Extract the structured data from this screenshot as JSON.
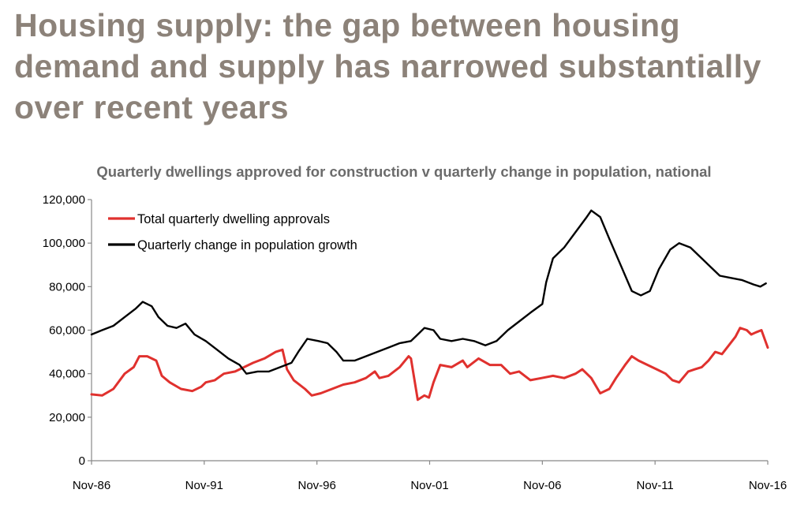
{
  "headline": "Housing supply: the gap between housing demand and supply has narrowed substantially over recent years",
  "chart_data": {
    "type": "line",
    "title": "Quarterly dwellings approved for construction v quarterly change in population, national",
    "xlabel": "",
    "ylabel": "",
    "x_ticks": [
      "Nov-86",
      "Nov-91",
      "Nov-96",
      "Nov-01",
      "Nov-06",
      "Nov-11",
      "Nov-16"
    ],
    "y_ticks": [
      "0",
      "20,000",
      "40,000",
      "60,000",
      "80,000",
      "100,000",
      "120,000"
    ],
    "ylim": [
      0,
      120000
    ],
    "xlim": [
      1986.83,
      2016.83
    ],
    "grid": false,
    "legend_position": "top-left",
    "series": [
      {
        "name": "Total quarterly dwelling approvals",
        "color": "#e0312e",
        "points": [
          [
            1986.83,
            30500
          ],
          [
            1987.3,
            30000
          ],
          [
            1987.8,
            33000
          ],
          [
            1988.3,
            40000
          ],
          [
            1988.7,
            43000
          ],
          [
            1988.95,
            48000
          ],
          [
            1989.3,
            48000
          ],
          [
            1989.7,
            46000
          ],
          [
            1989.95,
            39000
          ],
          [
            1990.3,
            36000
          ],
          [
            1990.8,
            33000
          ],
          [
            1991.3,
            32000
          ],
          [
            1991.7,
            34000
          ],
          [
            1991.9,
            36000
          ],
          [
            1992.3,
            37000
          ],
          [
            1992.7,
            40000
          ],
          [
            1993.2,
            41000
          ],
          [
            1993.6,
            43000
          ],
          [
            1994.0,
            45000
          ],
          [
            1994.5,
            47000
          ],
          [
            1995.0,
            50000
          ],
          [
            1995.3,
            51000
          ],
          [
            1995.5,
            42000
          ],
          [
            1995.8,
            37000
          ],
          [
            1996.3,
            33000
          ],
          [
            1996.6,
            30000
          ],
          [
            1997.0,
            31000
          ],
          [
            1997.5,
            33000
          ],
          [
            1998.0,
            35000
          ],
          [
            1998.5,
            36000
          ],
          [
            1999.0,
            38000
          ],
          [
            1999.4,
            41000
          ],
          [
            1999.6,
            38000
          ],
          [
            2000.0,
            39000
          ],
          [
            2000.5,
            43000
          ],
          [
            2000.9,
            48000
          ],
          [
            2001.0,
            47000
          ],
          [
            2001.3,
            28000
          ],
          [
            2001.6,
            30000
          ],
          [
            2001.8,
            29000
          ],
          [
            2002.0,
            36000
          ],
          [
            2002.3,
            44000
          ],
          [
            2002.8,
            43000
          ],
          [
            2003.3,
            46000
          ],
          [
            2003.5,
            43000
          ],
          [
            2004.0,
            47000
          ],
          [
            2004.5,
            44000
          ],
          [
            2005.0,
            44000
          ],
          [
            2005.4,
            40000
          ],
          [
            2005.8,
            41000
          ],
          [
            2006.3,
            37000
          ],
          [
            2006.8,
            38000
          ],
          [
            2007.3,
            39000
          ],
          [
            2007.8,
            38000
          ],
          [
            2008.3,
            40000
          ],
          [
            2008.6,
            42000
          ],
          [
            2009.0,
            38000
          ],
          [
            2009.4,
            31000
          ],
          [
            2009.8,
            33000
          ],
          [
            2010.1,
            38000
          ],
          [
            2010.5,
            44000
          ],
          [
            2010.8,
            48000
          ],
          [
            2011.1,
            46000
          ],
          [
            2011.5,
            44000
          ],
          [
            2011.9,
            42000
          ],
          [
            2012.3,
            40000
          ],
          [
            2012.6,
            37000
          ],
          [
            2012.9,
            36000
          ],
          [
            2013.3,
            41000
          ],
          [
            2013.6,
            42000
          ],
          [
            2013.9,
            43000
          ],
          [
            2014.2,
            46000
          ],
          [
            2014.5,
            50000
          ],
          [
            2014.8,
            49000
          ],
          [
            2015.1,
            53000
          ],
          [
            2015.4,
            57000
          ],
          [
            2015.6,
            61000
          ],
          [
            2015.9,
            60000
          ],
          [
            2016.1,
            58000
          ],
          [
            2016.3,
            59000
          ],
          [
            2016.55,
            60000
          ],
          [
            2016.83,
            52000
          ]
        ]
      },
      {
        "name": "Quarterly change in population growth",
        "color": "#000000",
        "points": [
          [
            1986.83,
            58000
          ],
          [
            1987.3,
            60000
          ],
          [
            1987.8,
            62000
          ],
          [
            1988.3,
            66000
          ],
          [
            1988.8,
            70000
          ],
          [
            1989.1,
            73000
          ],
          [
            1989.5,
            71000
          ],
          [
            1989.8,
            66000
          ],
          [
            1990.2,
            62000
          ],
          [
            1990.6,
            61000
          ],
          [
            1991.0,
            63000
          ],
          [
            1991.4,
            58000
          ],
          [
            1991.9,
            55000
          ],
          [
            1992.4,
            51000
          ],
          [
            1992.9,
            47000
          ],
          [
            1993.4,
            44000
          ],
          [
            1993.7,
            40000
          ],
          [
            1994.2,
            41000
          ],
          [
            1994.7,
            41000
          ],
          [
            1995.2,
            43000
          ],
          [
            1995.7,
            45000
          ],
          [
            1996.0,
            50000
          ],
          [
            1996.4,
            56000
          ],
          [
            1996.9,
            55000
          ],
          [
            1997.3,
            54000
          ],
          [
            1997.7,
            50000
          ],
          [
            1998.0,
            46000
          ],
          [
            1998.5,
            46000
          ],
          [
            1999.0,
            48000
          ],
          [
            1999.5,
            50000
          ],
          [
            2000.0,
            52000
          ],
          [
            2000.5,
            54000
          ],
          [
            2001.0,
            55000
          ],
          [
            2001.3,
            58000
          ],
          [
            2001.6,
            61000
          ],
          [
            2002.0,
            60000
          ],
          [
            2002.3,
            56000
          ],
          [
            2002.8,
            55000
          ],
          [
            2003.3,
            56000
          ],
          [
            2003.8,
            55000
          ],
          [
            2004.3,
            53000
          ],
          [
            2004.8,
            55000
          ],
          [
            2005.3,
            60000
          ],
          [
            2005.8,
            64000
          ],
          [
            2006.3,
            68000
          ],
          [
            2006.83,
            72000
          ],
          [
            2007.0,
            82000
          ],
          [
            2007.3,
            93000
          ],
          [
            2007.8,
            98000
          ],
          [
            2008.3,
            105000
          ],
          [
            2008.8,
            112000
          ],
          [
            2009.0,
            115000
          ],
          [
            2009.4,
            112000
          ],
          [
            2009.8,
            102000
          ],
          [
            2010.3,
            90000
          ],
          [
            2010.8,
            78000
          ],
          [
            2011.2,
            76000
          ],
          [
            2011.6,
            78000
          ],
          [
            2012.0,
            88000
          ],
          [
            2012.5,
            97000
          ],
          [
            2012.9,
            100000
          ],
          [
            2013.4,
            98000
          ],
          [
            2013.9,
            93000
          ],
          [
            2014.3,
            89000
          ],
          [
            2014.7,
            85000
          ],
          [
            2015.2,
            84000
          ],
          [
            2015.7,
            83000
          ],
          [
            2016.2,
            81000
          ],
          [
            2016.5,
            80000
          ],
          [
            2016.75,
            81500
          ]
        ]
      }
    ]
  }
}
